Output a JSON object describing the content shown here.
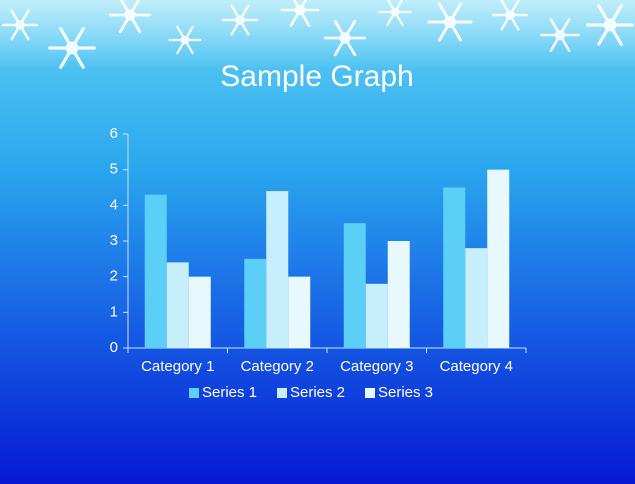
{
  "chart_data": {
    "type": "bar",
    "title": "Sample Graph",
    "categories": [
      "Category 1",
      "Category 2",
      "Category 3",
      "Category 4"
    ],
    "series": [
      {
        "name": "Series 1",
        "color": "#5ccff6",
        "values": [
          4.3,
          2.5,
          3.5,
          4.5
        ]
      },
      {
        "name": "Series 2",
        "color": "#c6eefb",
        "values": [
          2.4,
          4.4,
          1.8,
          2.8
        ]
      },
      {
        "name": "Series 3",
        "color": "#e8f9fe",
        "values": [
          2,
          2,
          3,
          5
        ]
      }
    ],
    "ylim": [
      0,
      6
    ],
    "yticks": [
      0,
      1,
      2,
      3,
      4,
      5,
      6
    ],
    "grid": false,
    "legend": "bottom"
  }
}
